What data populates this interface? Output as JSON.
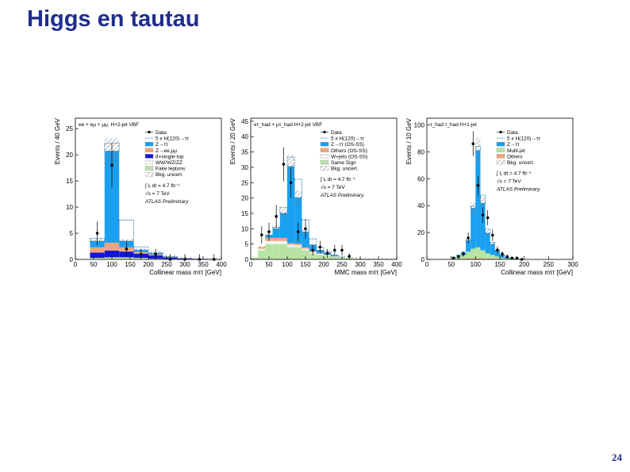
{
  "slide": {
    "title": "Higgs en tautau",
    "page_number": "24"
  },
  "chart_data": [
    {
      "type": "bar",
      "stacked": true,
      "channel_label": "ee + eμ + μμ, H+2-jet VBF",
      "xlabel": "Collinear mass mττ [GeV]",
      "ylabel": "Events / 40 GeV",
      "xlim": [
        0,
        400
      ],
      "ylim": [
        0,
        27
      ],
      "xticks": [
        0,
        50,
        100,
        150,
        200,
        250,
        300,
        350,
        400
      ],
      "yticks": [
        0,
        5,
        10,
        15,
        20,
        25
      ],
      "bin_edges": [
        40,
        80,
        120,
        160,
        200,
        240,
        280,
        320,
        360,
        400
      ],
      "series": [
        {
          "name": "WW/WZ/ZZ",
          "color": "#f4f4f4",
          "values": [
            0.1,
            0.1,
            0.1,
            0.1,
            0.05,
            0,
            0,
            0,
            0
          ]
        },
        {
          "name": "Fake leptons",
          "color": "#b8e3a4",
          "values": [
            0.2,
            0.3,
            0.3,
            0.2,
            0.1,
            0.1,
            0,
            0,
            0
          ]
        },
        {
          "name": "tt̄+single-top",
          "color": "#1515d6",
          "values": [
            1.0,
            1.3,
            1.1,
            0.8,
            0.6,
            0.3,
            0.2,
            0.1,
            0.05
          ]
        },
        {
          "name": "Z→ee,μμ",
          "color": "#f2a47a",
          "values": [
            1.0,
            1.5,
            0.8,
            0.3,
            0.2,
            0.1,
            0,
            0,
            0
          ]
        },
        {
          "name": "Z→ττ",
          "color": "#1aa0f0",
          "values": [
            1.2,
            17.5,
            1.2,
            0.4,
            0.2,
            0.1,
            0,
            0,
            0
          ]
        }
      ],
      "signal": {
        "name": "5 x H(120)→ττ",
        "values": [
          0.5,
          1.5,
          4.0,
          0.6,
          0.2,
          0,
          0,
          0,
          0
        ]
      },
      "data": {
        "name": "Data",
        "x": [
          60,
          100,
          140,
          180,
          220,
          260,
          300,
          340,
          380
        ],
        "y": [
          5,
          18,
          2,
          1,
          1,
          0,
          0,
          0,
          0
        ]
      },
      "uncertainty_label": "Bkg. uncert.",
      "legend": [
        "Data",
        "5 x H(120)→ττ",
        "Z→ττ",
        "Z→ee,μμ",
        "tt̄+single-top",
        "WW/WZ/ZZ",
        "Fake leptons",
        "Bkg. uncert."
      ],
      "legend_position": "top-right",
      "annotations": [
        "∫ L dt = 4.7 fb⁻¹",
        "√s = 7 TeV",
        "ATLAS Preliminary"
      ]
    },
    {
      "type": "bar",
      "stacked": true,
      "channel_label": "eτ_had + μτ_had H+2-jet VBF",
      "xlabel": "MMC mass mττ [GeV]",
      "ylabel": "Events / 20 GeV",
      "xlim": [
        0,
        400
      ],
      "ylim": [
        0,
        46
      ],
      "xticks": [
        0,
        50,
        100,
        150,
        200,
        250,
        300,
        350,
        400
      ],
      "yticks": [
        0,
        5,
        10,
        15,
        20,
        25,
        30,
        35,
        40,
        45
      ],
      "bin_edges": [
        0,
        20,
        40,
        60,
        80,
        100,
        120,
        140,
        160,
        180,
        200,
        220,
        240,
        260,
        280,
        300,
        320,
        340,
        360,
        380,
        400
      ],
      "series": [
        {
          "name": "Same Sign",
          "color": "#b8e3a4",
          "values": [
            0.5,
            3,
            5,
            5,
            5,
            4,
            4,
            3,
            2,
            1.5,
            1.2,
            0.8,
            0.6,
            0.4,
            0.3,
            0.2,
            0.1,
            0.1,
            0.1,
            0.1
          ]
        },
        {
          "name": "W+jets (OS-SS)",
          "color": "#f4f4f4",
          "values": [
            0,
            0.5,
            1,
            1,
            1,
            0.8,
            0.6,
            0.5,
            0.4,
            0.3,
            0.2,
            0.1,
            0.1,
            0.1,
            0,
            0,
            0,
            0,
            0,
            0
          ]
        },
        {
          "name": "Others (OS-SS)",
          "color": "#f2a47a",
          "values": [
            0,
            0.5,
            1,
            1,
            1,
            0.5,
            0.5,
            0.4,
            0.3,
            0.2,
            0.1,
            0.1,
            0,
            0,
            0,
            0,
            0,
            0,
            0,
            0
          ]
        },
        {
          "name": "Z→ττ (OS-SS)",
          "color": "#1aa0f0",
          "values": [
            0,
            0,
            1,
            3,
            8,
            25,
            15,
            5,
            2,
            1,
            0.5,
            0.2,
            0.1,
            0,
            0,
            0,
            0,
            0,
            0,
            0
          ]
        }
      ],
      "signal": {
        "name": "5 x H(120)→ττ",
        "values": [
          0,
          0,
          0,
          0.5,
          2,
          3,
          6,
          4,
          2,
          1,
          0.5,
          0.2,
          0,
          0,
          0,
          0,
          0,
          0,
          0,
          0
        ]
      },
      "data": {
        "name": "Data",
        "x": [
          30,
          50,
          70,
          90,
          110,
          130,
          150,
          170,
          190,
          210,
          230,
          250,
          270
        ],
        "y": [
          8,
          9,
          14,
          31,
          25,
          9,
          10,
          3,
          4,
          2,
          3,
          3,
          1
        ]
      },
      "uncertainty_label": "Bkg. uncert.",
      "legend": [
        "Data",
        "5 x H(120)→ττ",
        "Z→ττ (OS-SS)",
        "Others (OS-SS)",
        "W+jets (OS-SS)",
        "Same Sign",
        "Bkg. uncert."
      ],
      "legend_position": "top-right",
      "annotations": [
        "∫ L dt = 4.7 fb⁻¹",
        "√s = 7 TeV",
        "ATLAS Preliminary"
      ]
    },
    {
      "type": "bar",
      "stacked": true,
      "channel_label": "τ_had τ_had H+1-jet",
      "xlabel": "Collinear mass mττ [GeV]",
      "ylabel": "Events / 10 GeV",
      "xlim": [
        0,
        300
      ],
      "ylim": [
        0,
        105
      ],
      "xticks": [
        0,
        50,
        100,
        150,
        200,
        250,
        300
      ],
      "yticks": [
        0,
        20,
        40,
        60,
        80,
        100
      ],
      "bin_edges": [
        50,
        60,
        70,
        80,
        90,
        100,
        110,
        120,
        130,
        140,
        150,
        160,
        170,
        180,
        190,
        200
      ],
      "series": [
        {
          "name": "Others",
          "color": "#f2a47a",
          "values": [
            0.2,
            0.3,
            0.5,
            0.8,
            1,
            1,
            0.8,
            0.5,
            0.3,
            0.2,
            0.1,
            0.1,
            0,
            0,
            0
          ]
        },
        {
          "name": "Multi-jet",
          "color": "#b8e3a4",
          "values": [
            1,
            2,
            3,
            5,
            7,
            8,
            6,
            4,
            3,
            2,
            1,
            0.5,
            0.5,
            0.3,
            0.2
          ]
        },
        {
          "name": "Z→ττ",
          "color": "#1aa0f0",
          "values": [
            0.5,
            1,
            2,
            8,
            30,
            72,
            35,
            15,
            8,
            4,
            2,
            1,
            0.5,
            0.2,
            0.1
          ]
        }
      ],
      "signal": {
        "name": "5 x H(120)→ττ",
        "values": [
          0,
          0,
          0,
          0.5,
          1.5,
          3,
          6,
          3,
          1.5,
          0.5,
          0.2,
          0,
          0,
          0,
          0
        ]
      },
      "data": {
        "name": "Data",
        "x": [
          55,
          65,
          75,
          85,
          95,
          105,
          115,
          125,
          135,
          145,
          155,
          165,
          175,
          185,
          195
        ],
        "y": [
          1,
          2,
          4,
          16,
          86,
          55,
          33,
          31,
          18,
          7,
          4,
          2,
          1,
          1,
          0
        ]
      },
      "uncertainty_label": "Bkg. uncert.",
      "legend": [
        "Data",
        "5 x H(120)→ττ",
        "Z→ττ",
        "Multi-jet",
        "Others",
        "Bkg. uncert."
      ],
      "legend_position": "top-right",
      "annotations": [
        "∫ L dt = 4.7 fb⁻¹",
        "√s = 7 TeV",
        "ATLAS Preliminary"
      ]
    }
  ]
}
